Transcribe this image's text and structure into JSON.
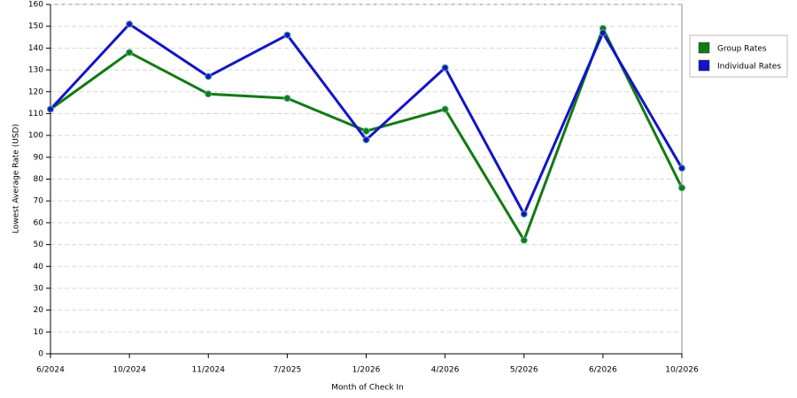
{
  "chart_data": {
    "type": "line",
    "x_label": "Month of Check In",
    "y_label": "Lowest Average Rate (USD)",
    "categories": [
      "6/2024",
      "10/2024",
      "11/2024",
      "7/2025",
      "1/2026",
      "4/2026",
      "5/2026",
      "6/2026",
      "10/2026"
    ],
    "series": [
      {
        "name": "Group Rates",
        "color": "#127a12",
        "values": [
          112,
          138,
          119,
          117,
          102,
          112,
          52,
          149,
          76
        ]
      },
      {
        "name": "Individual Rates",
        "color": "#1414c8",
        "values": [
          112,
          151,
          127,
          146,
          98,
          131,
          64,
          147,
          85
        ]
      }
    ],
    "ylim": [
      0,
      160
    ],
    "yticks": [
      0,
      10,
      20,
      30,
      40,
      50,
      60,
      70,
      80,
      90,
      100,
      110,
      120,
      130,
      140,
      150,
      160
    ],
    "grid": true,
    "legend": "right"
  }
}
